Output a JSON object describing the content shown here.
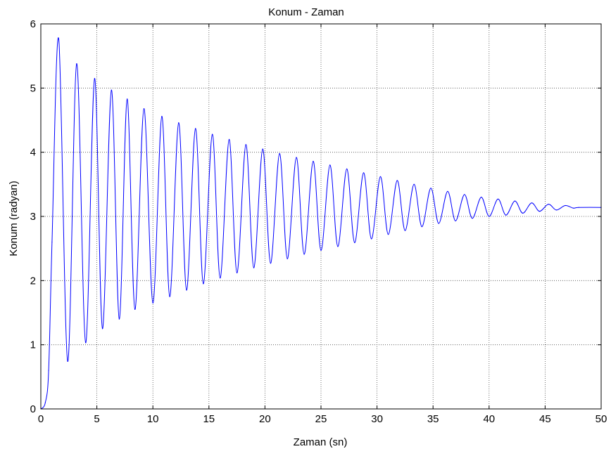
{
  "chart_data": {
    "type": "line",
    "title": "Konum - Zaman",
    "xlabel": "Zaman (sn)",
    "ylabel": "Konum (radyan)",
    "xlim": [
      0,
      50
    ],
    "ylim": [
      0,
      6
    ],
    "xticks": [
      0,
      5,
      10,
      15,
      20,
      25,
      30,
      35,
      40,
      45,
      50
    ],
    "yticks": [
      0,
      1,
      2,
      3,
      4,
      5,
      6
    ],
    "xtick_labels": [
      "0",
      "5",
      "10",
      "15",
      "20",
      "25",
      "30",
      "35",
      "40",
      "45",
      "50"
    ],
    "ytick_labels": [
      "0",
      "1",
      "2",
      "3",
      "4",
      "5",
      "6"
    ],
    "grid": true,
    "line_color": "#0000ff",
    "series": [
      {
        "x": [
          0.0,
          0.4,
          0.7,
          1.0,
          1.6,
          2.4,
          3.2,
          4.0,
          4.8,
          5.5,
          6.3,
          7.0,
          7.7,
          8.4,
          9.2,
          10.0,
          10.8,
          11.5,
          12.3,
          13.0,
          13.8,
          14.5,
          15.3,
          16.0,
          16.8,
          17.5,
          18.3,
          19.0,
          19.8,
          20.5,
          21.3,
          22.0,
          22.8,
          23.5,
          24.3,
          25.0,
          25.8,
          26.5,
          27.3,
          28.0,
          28.8,
          29.5,
          30.3,
          31.0,
          31.8,
          32.5,
          33.3,
          34.0,
          34.8,
          35.5,
          36.3,
          37.0,
          37.8,
          38.5,
          39.3,
          40.0,
          40.8,
          41.5,
          42.3,
          43.0,
          43.8,
          44.5,
          45.3,
          46.0,
          46.8,
          47.5,
          48.0,
          50.0
        ],
        "y": [
          0.0,
          0.1,
          0.6,
          2.6,
          5.76,
          0.74,
          5.38,
          1.03,
          5.15,
          1.25,
          4.97,
          1.4,
          4.83,
          1.55,
          4.68,
          1.65,
          4.56,
          1.75,
          4.46,
          1.85,
          4.37,
          1.95,
          4.28,
          2.04,
          4.2,
          2.12,
          4.12,
          2.2,
          4.05,
          2.27,
          3.98,
          2.34,
          3.92,
          2.41,
          3.86,
          2.47,
          3.8,
          2.53,
          3.74,
          2.59,
          3.68,
          2.65,
          3.62,
          2.72,
          3.56,
          2.78,
          3.5,
          2.84,
          3.44,
          2.89,
          3.39,
          2.93,
          3.34,
          2.97,
          3.3,
          3.0,
          3.27,
          3.02,
          3.24,
          3.05,
          3.21,
          3.08,
          3.19,
          3.1,
          3.17,
          3.13,
          3.14,
          3.14
        ]
      }
    ]
  }
}
